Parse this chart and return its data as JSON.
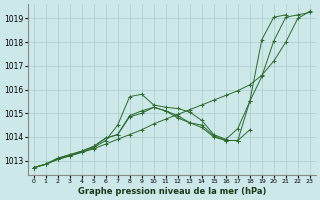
{
  "xlabel": "Graphe pression niveau de la mer (hPa)",
  "bg_color": "#cce8e8",
  "grid_color": "#aacccc",
  "line_color": "#2d6a2d",
  "x_ticks": [
    0,
    1,
    2,
    3,
    4,
    5,
    6,
    7,
    8,
    9,
    10,
    11,
    12,
    13,
    14,
    15,
    16,
    17,
    18,
    19,
    20,
    21,
    22,
    23
  ],
  "y_ticks": [
    1013,
    1014,
    1015,
    1016,
    1017,
    1018,
    1019
  ],
  "ylim": [
    1012.4,
    1019.6
  ],
  "xlim": [
    -0.5,
    23.5
  ],
  "series": [
    {
      "x": [
        0,
        1,
        2,
        3,
        4,
        5,
        6,
        7,
        8,
        9,
        10,
        11,
        12,
        13,
        14,
        15,
        16,
        17,
        18,
        19,
        20,
        21,
        22,
        23
      ],
      "y": [
        1012.7,
        1012.85,
        1013.05,
        1013.2,
        1013.35,
        1013.5,
        1013.7,
        1013.9,
        1014.1,
        1014.3,
        1014.55,
        1014.75,
        1014.95,
        1015.15,
        1015.35,
        1015.55,
        1015.75,
        1015.95,
        1016.2,
        1016.6,
        1017.2,
        1018.0,
        1019.0,
        1019.3
      ]
    },
    {
      "x": [
        0,
        1,
        2,
        3,
        4,
        5,
        6,
        7,
        8,
        9,
        10,
        11,
        12,
        13,
        14,
        15,
        16,
        17,
        18,
        19,
        20,
        21,
        22,
        23
      ],
      "y": [
        1012.7,
        1012.85,
        1013.05,
        1013.2,
        1013.35,
        1013.55,
        1013.85,
        1014.5,
        1015.7,
        1015.8,
        1015.35,
        1015.25,
        1015.2,
        1015.05,
        1014.7,
        1014.1,
        1013.9,
        1014.35,
        1015.5,
        1016.55,
        1018.05,
        1019.05,
        1019.15,
        1019.25
      ]
    },
    {
      "comment": "Line with bump x=8-9 (~1014.9-1015.2), dip x=14-17, rises steeply x=18-21 to 1019.1",
      "x": [
        0,
        1,
        2,
        3,
        4,
        5,
        6,
        7,
        8,
        9,
        10,
        11,
        12,
        13,
        14,
        15,
        16,
        17,
        18,
        19,
        20,
        21,
        22,
        23
      ],
      "y": [
        1012.7,
        1012.85,
        1013.1,
        1013.25,
        1013.4,
        1013.6,
        1013.95,
        1014.1,
        1014.9,
        1015.1,
        1015.25,
        1015.1,
        1014.8,
        1014.6,
        1014.5,
        1014.05,
        1013.85,
        1013.85,
        1015.5,
        1018.1,
        1019.05,
        1019.15,
        null,
        null
      ]
    },
    {
      "x": [
        0,
        1,
        2,
        3,
        4,
        5,
        6,
        7,
        8,
        9,
        10,
        11,
        12,
        13,
        14,
        15,
        16,
        17,
        18,
        19,
        20,
        21,
        22,
        23
      ],
      "y": [
        1012.7,
        1012.85,
        1013.1,
        1013.25,
        1013.4,
        1013.6,
        1013.95,
        1014.1,
        1014.85,
        1015.0,
        1015.25,
        1015.1,
        1014.9,
        1014.6,
        1014.4,
        1014.0,
        1013.85,
        1013.85,
        1014.3,
        null,
        null,
        null,
        null,
        null
      ]
    }
  ]
}
